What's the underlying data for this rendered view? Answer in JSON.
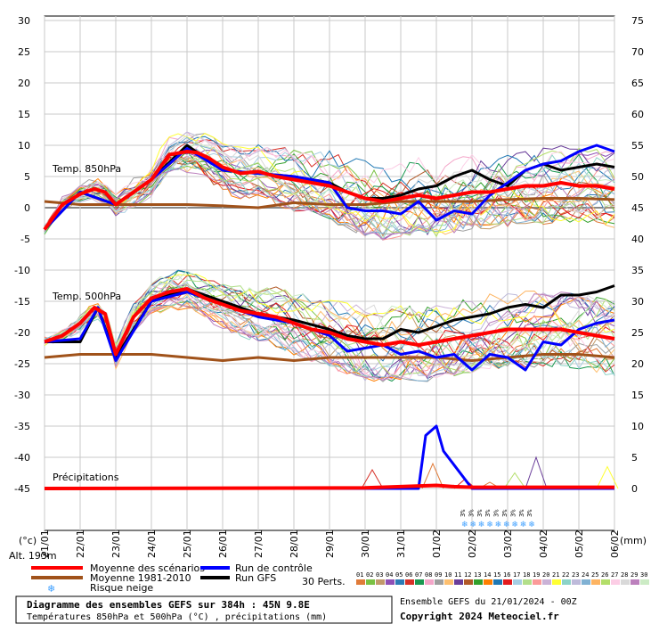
{
  "chart_data": {
    "type": "line",
    "left_axis": {
      "title": "(°c)",
      "ylim": [
        -45,
        30
      ],
      "ticks": [
        "30",
        "25",
        "20",
        "15",
        "10",
        "5",
        "0",
        "-5",
        "-10",
        "-15",
        "-20",
        "-25",
        "-30",
        "-35",
        "-40",
        "-45"
      ]
    },
    "right_axis": {
      "title": "(mm)",
      "ticks": [
        "75",
        "70",
        "65",
        "60",
        "55",
        "50",
        "45",
        "40",
        "35",
        "30",
        "25",
        "20",
        "15",
        "10",
        "5",
        "0"
      ]
    },
    "x_dates": [
      "21/01",
      "22/01",
      "23/01",
      "24/01",
      "25/01",
      "26/01",
      "27/01",
      "28/01",
      "29/01",
      "30/01",
      "31/01",
      "01/02",
      "02/02",
      "03/02",
      "04/02",
      "05/02",
      "06/02"
    ],
    "panel_labels": {
      "t850": "Temp. 850hPa",
      "t500": "Temp. 500hPa",
      "precip": "Précipitations"
    },
    "alt_label": "Alt. 193m",
    "snow_marks": {
      "text": "3%",
      "count": 9
    },
    "series": [
      {
        "name": "Moyenne des scénarios",
        "color": "#ff0000",
        "group": "t850",
        "x": [
          0,
          0.5,
          1,
          1.4,
          1.7,
          2,
          2.5,
          3,
          3.5,
          4,
          4.3,
          4.6,
          5,
          5.5,
          6,
          6.5,
          7,
          7.5,
          8,
          8.5,
          9,
          9.5,
          10,
          10.5,
          11,
          11.5,
          12,
          12.5,
          13,
          13.5,
          14,
          14.5,
          15,
          15.5,
          16
        ],
        "values": [
          -3.5,
          0.5,
          2.2,
          3,
          2.5,
          0.5,
          2.5,
          4.5,
          8.5,
          9,
          8.8,
          8,
          6.5,
          5.5,
          5.8,
          5,
          4.5,
          4,
          3.5,
          2.5,
          1.5,
          1,
          1.5,
          2,
          1.5,
          2,
          2.5,
          2.5,
          3,
          3.5,
          3.5,
          4,
          3.5,
          3.5,
          3
        ]
      },
      {
        "name": "Moyenne 1981-2010",
        "color": "#a0521a",
        "group": "t850",
        "x": [
          0,
          1,
          2,
          3,
          4,
          5,
          6,
          7,
          8,
          9,
          10,
          11,
          12,
          13,
          14,
          15,
          16
        ],
        "values": [
          1,
          0.5,
          0.5,
          0.5,
          0.5,
          0.3,
          0,
          0.8,
          0.5,
          0.5,
          1,
          1,
          1,
          1.3,
          1.5,
          1.5,
          1.3
        ]
      },
      {
        "name": "Run de contrôle",
        "color": "#0000ff",
        "group": "t850",
        "x": [
          0,
          1,
          2,
          3,
          4,
          5,
          6,
          7,
          8,
          8.5,
          9,
          9.5,
          10,
          10.5,
          11,
          11.5,
          12,
          12.5,
          13,
          13.5,
          14,
          14.5,
          15,
          15.5,
          16
        ],
        "values": [
          -3.5,
          2.5,
          0.5,
          4.5,
          9.5,
          6,
          5.5,
          5,
          4,
          0,
          -0.5,
          -0.5,
          -1,
          1,
          -2,
          -0.5,
          -1,
          2,
          4,
          6,
          7,
          7.5,
          9,
          10,
          9
        ]
      },
      {
        "name": "Run GFS",
        "color": "#000000",
        "group": "t850",
        "x": [
          0,
          1,
          2,
          3,
          4,
          5,
          6,
          7,
          8,
          8.5,
          9,
          9.5,
          10,
          10.5,
          11,
          11.5,
          12,
          12.5,
          13,
          13.5,
          14,
          14.5,
          15,
          15.5,
          16
        ],
        "values": [
          -3.5,
          2.5,
          0.5,
          4.5,
          10,
          6,
          5.5,
          5,
          4,
          2.5,
          1.5,
          1.5,
          2,
          3,
          3.5,
          5,
          6,
          4.5,
          3.5,
          6,
          7,
          6,
          6.5,
          7,
          6.5
        ]
      },
      {
        "name": "Moyenne des scénarios",
        "color": "#ff0000",
        "group": "t500",
        "x": [
          0,
          0.5,
          1,
          1.4,
          1.7,
          2,
          2.5,
          3,
          3.5,
          4,
          4.5,
          5,
          5.5,
          6,
          6.5,
          7,
          7.5,
          8,
          8.5,
          9,
          9.5,
          10,
          10.5,
          11,
          11.5,
          12,
          12.5,
          13,
          13.5,
          14,
          14.5,
          15,
          15.5,
          16
        ],
        "values": [
          -21.5,
          -20.5,
          -18.5,
          -16,
          -17,
          -23.5,
          -17.5,
          -14.5,
          -13.5,
          -13,
          -14.5,
          -15.5,
          -16.5,
          -17,
          -17.5,
          -18.5,
          -19.5,
          -20,
          -21,
          -21.5,
          -22,
          -21.5,
          -22,
          -21.5,
          -21,
          -20.5,
          -20,
          -19.5,
          -19.5,
          -19.5,
          -19.5,
          -20,
          -20.5,
          -21
        ]
      },
      {
        "name": "Moyenne 1981-2010",
        "color": "#a0521a",
        "group": "t500",
        "x": [
          0,
          1,
          2,
          3,
          4,
          5,
          6,
          7,
          8,
          9,
          10,
          11,
          12,
          13,
          14,
          15,
          16
        ],
        "values": [
          -24,
          -23.5,
          -23.5,
          -23.5,
          -24,
          -24.5,
          -24,
          -24.5,
          -24,
          -24,
          -24,
          -24,
          -24.5,
          -24,
          -23.5,
          -23.5,
          -24
        ]
      },
      {
        "name": "Run de contrôle",
        "color": "#0000ff",
        "group": "t500",
        "x": [
          0,
          1,
          1.5,
          2,
          3,
          4,
          5,
          6,
          7,
          8,
          8.5,
          9,
          9.5,
          10,
          10.5,
          11,
          11.5,
          12,
          12.5,
          13,
          13.5,
          14,
          14.5,
          15,
          15.5,
          16
        ],
        "values": [
          -21.5,
          -21,
          -16,
          -24.5,
          -15,
          -13.5,
          -15.5,
          -17.5,
          -18.5,
          -20.5,
          -23,
          -22.5,
          -22,
          -23.5,
          -23,
          -24,
          -23.5,
          -26,
          -23.5,
          -24,
          -26,
          -21.5,
          -22,
          -19.5,
          -18.5,
          -18
        ]
      },
      {
        "name": "Run GFS",
        "color": "#000000",
        "group": "t500",
        "x": [
          0,
          1,
          1.5,
          2,
          3,
          4,
          5,
          6,
          7,
          8,
          8.5,
          9,
          9.5,
          10,
          10.5,
          11,
          11.5,
          12,
          12.5,
          13,
          13.5,
          14,
          14.5,
          15,
          15.5,
          16
        ],
        "values": [
          -21.5,
          -21.5,
          -16,
          -24,
          -15,
          -13,
          -15,
          -17,
          -18,
          -19.5,
          -20.5,
          -21,
          -21,
          -19.5,
          -20,
          -19,
          -18,
          -17.5,
          -17,
          -16,
          -15.5,
          -16,
          -14,
          -14,
          -13.5,
          -12.5
        ]
      },
      {
        "name": "Run de contrôle",
        "color": "#0000ff",
        "group": "precip",
        "x": [
          0,
          8,
          9.5,
          10,
          10.5,
          10.7,
          11,
          11.2,
          12,
          16
        ],
        "values": [
          0,
          0,
          0,
          0,
          0,
          8.5,
          10,
          6,
          0,
          0
        ]
      },
      {
        "name": "Moyenne des scénarios",
        "color": "#ff0000",
        "group": "precip",
        "x": [
          0,
          9,
          10,
          11,
          11.5,
          12,
          16
        ],
        "values": [
          0,
          0.1,
          0.3,
          0.5,
          0.3,
          0.2,
          0.2
        ]
      }
    ]
  },
  "legend": {
    "mean": "Moyenne des scénarios",
    "clim": "Moyenne 1981-2010",
    "snow": "Risque neige",
    "control": "Run de contrôle",
    "gfs": "Run GFS",
    "perts_label": "30 Perts.",
    "pert_numbers": [
      "01",
      "02",
      "03",
      "04",
      "05",
      "06",
      "07",
      "08",
      "09",
      "10",
      "11",
      "12",
      "13",
      "14",
      "15",
      "16",
      "17",
      "18",
      "19",
      "20",
      "21",
      "22",
      "23",
      "24",
      "25",
      "26",
      "27",
      "28",
      "29",
      "30"
    ],
    "pert_colors": [
      "#e07b39",
      "#7ac143",
      "#c29a6b",
      "#8f4fb5",
      "#2c7bb6",
      "#d73027",
      "#1a9850",
      "#f4a6c9",
      "#9e9e9e",
      "#fdbf6f",
      "#6a3d9a",
      "#b15928",
      "#33a02c",
      "#ff7f00",
      "#1f78b4",
      "#e31a1c",
      "#a6cee3",
      "#b2df8a",
      "#fb9a99",
      "#cab2d6",
      "#ffff33",
      "#8dd3c7",
      "#bebada",
      "#80b1d3",
      "#fdb462",
      "#b3de69",
      "#fccde5",
      "#d9d9d9",
      "#bc80bd",
      "#ccebc5"
    ]
  },
  "footer": {
    "title": "Diagramme des ensembles GEFS sur 384h : 45N 9.8E",
    "subtitle": "Températures 850hPa et 500hPa (°C) , précipitations (mm)",
    "run": "Ensemble GEFS du 21/01/2024 - 00Z",
    "copyright": "Copyright 2024 Meteociel.fr"
  }
}
